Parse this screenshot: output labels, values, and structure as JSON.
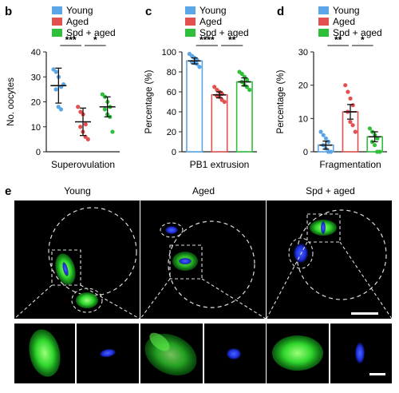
{
  "panel_labels": {
    "b": "b",
    "c": "c",
    "d": "d",
    "e": "e"
  },
  "legend": {
    "items": [
      {
        "label": "Young",
        "color": "#5aa6e6"
      },
      {
        "label": "Aged",
        "color": "#e35050"
      },
      {
        "label": "Spd + aged",
        "color": "#2fbf3a"
      }
    ]
  },
  "chart_data": [
    {
      "id": "b",
      "type": "scatter",
      "xlabel": "Superovulation",
      "ylabel": "No. oocytes",
      "ylim": [
        0,
        40
      ],
      "yticks": [
        "0",
        "10",
        "20",
        "30",
        "40"
      ],
      "grid": false,
      "legend": "top",
      "series": [
        {
          "name": "Young",
          "mean": 26.5,
          "err": 7,
          "points": [
            33,
            32,
            30,
            26,
            25,
            18,
            17,
            27
          ]
        },
        {
          "name": "Aged",
          "mean": 12,
          "err": 5.5,
          "points": [
            18,
            16,
            15,
            11,
            10,
            8,
            6,
            5
          ]
        },
        {
          "name": "Spd + aged",
          "mean": 18,
          "err": 4,
          "points": [
            23,
            22,
            20,
            18,
            17,
            15,
            14,
            8
          ]
        }
      ],
      "significance": [
        {
          "from": 0,
          "to": 1,
          "label": "***"
        },
        {
          "from": 1,
          "to": 2,
          "label": "*"
        }
      ]
    },
    {
      "id": "c",
      "type": "bar",
      "xlabel": "PB1 extrusion",
      "ylabel": "Percentage (%)",
      "ylim": [
        0,
        100
      ],
      "yticks": [
        "0",
        "20",
        "40",
        "60",
        "80",
        "100"
      ],
      "grid": false,
      "legend": "top",
      "series": [
        {
          "name": "Young",
          "mean": 91,
          "err": 3,
          "points": [
            98,
            96,
            94,
            92,
            90,
            89,
            88,
            85
          ]
        },
        {
          "name": "Aged",
          "mean": 57,
          "err": 3,
          "points": [
            65,
            62,
            60,
            58,
            56,
            55,
            52,
            50
          ]
        },
        {
          "name": "Spd + aged",
          "mean": 70,
          "err": 4,
          "points": [
            80,
            78,
            75,
            72,
            70,
            67,
            65,
            62
          ]
        }
      ],
      "significance": [
        {
          "from": 0,
          "to": 1,
          "label": "****"
        },
        {
          "from": 1,
          "to": 2,
          "label": "**"
        }
      ]
    },
    {
      "id": "d",
      "type": "bar",
      "xlabel": "Fragmentation",
      "ylabel": "Percentage (%)",
      "ylim": [
        0,
        30
      ],
      "yticks": [
        "0",
        "10",
        "20",
        "30"
      ],
      "grid": false,
      "legend": "top",
      "series": [
        {
          "name": "Young",
          "mean": 2,
          "err": 1.2,
          "points": [
            6,
            5,
            4,
            3,
            2,
            1,
            0,
            0
          ]
        },
        {
          "name": "Aged",
          "mean": 12,
          "err": 2.2,
          "points": [
            20,
            18,
            16,
            14,
            12,
            9,
            8,
            6
          ]
        },
        {
          "name": "Spd + aged",
          "mean": 4.5,
          "err": 1.5,
          "points": [
            7,
            6,
            5,
            4,
            3,
            2,
            0,
            0
          ]
        }
      ],
      "significance": [
        {
          "from": 0,
          "to": 1,
          "label": "**"
        },
        {
          "from": 1,
          "to": 2,
          "label": "*"
        }
      ]
    }
  ],
  "panel_e": {
    "titles": [
      "Young",
      "Aged",
      "Spd + aged"
    ]
  }
}
